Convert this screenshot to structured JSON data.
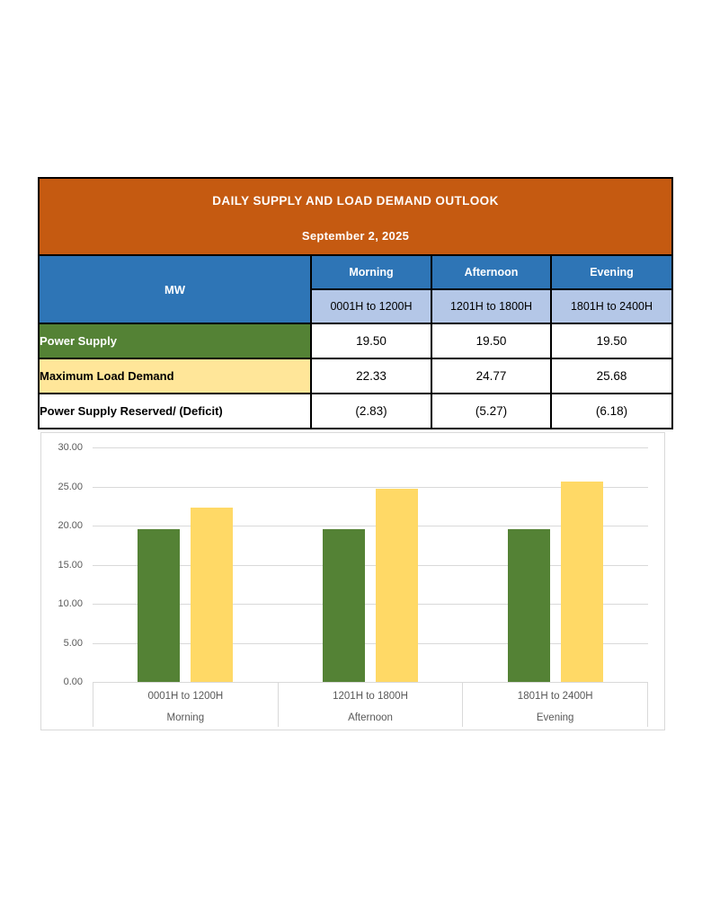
{
  "report": {
    "title": "DAILY SUPPLY AND LOAD DEMAND OUTLOOK",
    "date": "September 2, 2025",
    "unit_label": "MW",
    "periods": [
      {
        "name": "Morning",
        "hours": "0001H to 1200H"
      },
      {
        "name": "Afternoon",
        "hours": "1201H to 1800H"
      },
      {
        "name": "Evening",
        "hours": "1801H to 2400H"
      }
    ],
    "rows": [
      {
        "label": "Power Supply",
        "values": [
          "19.50",
          "19.50",
          "19.50"
        ]
      },
      {
        "label": "Maximum Load Demand",
        "values": [
          "22.33",
          "24.77",
          "25.68"
        ]
      },
      {
        "label": "Power Supply Reserved/ (Deficit)",
        "values": [
          "(2.83)",
          "(5.27)",
          "(6.18)"
        ]
      }
    ]
  },
  "chart_data": {
    "type": "bar",
    "title": "",
    "categories": [
      {
        "hours": "0001H to 1200H",
        "period": "Morning"
      },
      {
        "hours": "1201H to 1800H",
        "period": "Afternoon"
      },
      {
        "hours": "1801H to 2400H",
        "period": "Evening"
      }
    ],
    "series": [
      {
        "name": "Power Supply",
        "color": "#548235",
        "values": [
          19.5,
          19.5,
          19.5
        ]
      },
      {
        "name": "Maximum Load Demand",
        "color": "#FFD966",
        "values": [
          22.33,
          24.77,
          25.68
        ]
      }
    ],
    "ylim": [
      0,
      30
    ],
    "yticks": [
      0,
      5,
      10,
      15,
      20,
      25,
      30
    ],
    "ytick_labels": [
      "0.00",
      "5.00",
      "10.00",
      "15.00",
      "20.00",
      "25.00",
      "30.00"
    ],
    "xlabel": "",
    "ylabel": "",
    "grid": true,
    "legend": "none"
  },
  "colors": {
    "banner_orange": "#C55A11",
    "header_blue": "#2E75B6",
    "subheader_lavender": "#B4C7E7",
    "supply_green": "#548235",
    "demand_yellow_row": "#FFE699",
    "demand_yellow_bar": "#FFD966",
    "grid_gray": "#D9D9D9",
    "axis_text_gray": "#595959",
    "border_black": "#000000"
  }
}
